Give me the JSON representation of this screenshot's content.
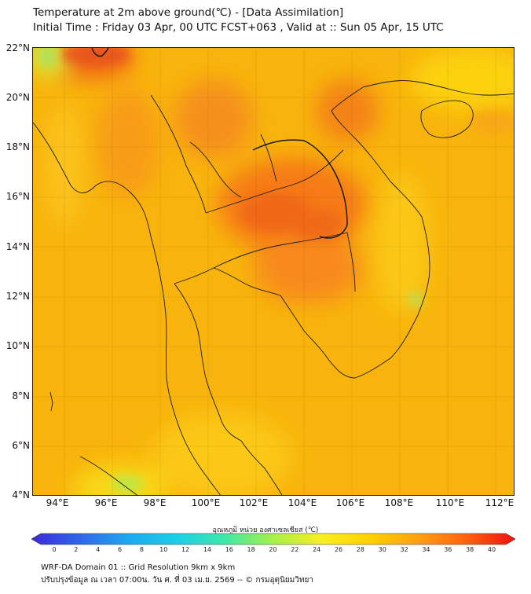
{
  "title": {
    "line1": "Temperature at 2m above ground(℃) - [Data Assimilation]",
    "line2": "Initial Time : Friday 03 Apr, 00 UTC FCST+063 , Valid at :: Sun 05 Apr, 15 UTC"
  },
  "axes": {
    "y_labels": [
      "22°N",
      "20°N",
      "18°N",
      "16°N",
      "14°N",
      "12°N",
      "10°N",
      "8°N",
      "6°N",
      "4°N"
    ],
    "x_labels": [
      "94°E",
      "96°E",
      "98°E",
      "100°E",
      "102°E",
      "104°E",
      "106°E",
      "108°E",
      "110°E",
      "112°E"
    ]
  },
  "colorbar": {
    "label": "อุณหภูมิ หน่วย องศาเซลเซียส (℃)",
    "ticks": [
      "0",
      "2",
      "4",
      "6",
      "8",
      "10",
      "12",
      "14",
      "16",
      "18",
      "20",
      "22",
      "24",
      "26",
      "28",
      "30",
      "32",
      "34",
      "36",
      "38",
      "40"
    ],
    "colors": [
      "#3a2ad8",
      "#2f66e8",
      "#1fa8f0",
      "#18d0e8",
      "#3fe8a8",
      "#a8f048",
      "#f8f020",
      "#ffd000",
      "#ffa010",
      "#ff6010",
      "#f01010"
    ]
  },
  "footer": {
    "line1": "WRF-DA Domain 01 :: Grid Resolution 9km x 9km",
    "line2": "ปรับปรุงข้อมูล ณ เวลา 07:00น. วัน ศ. ที่ 03 เม.ย. 2569 -- © กรมอุตุนิยมวิทยา"
  }
}
